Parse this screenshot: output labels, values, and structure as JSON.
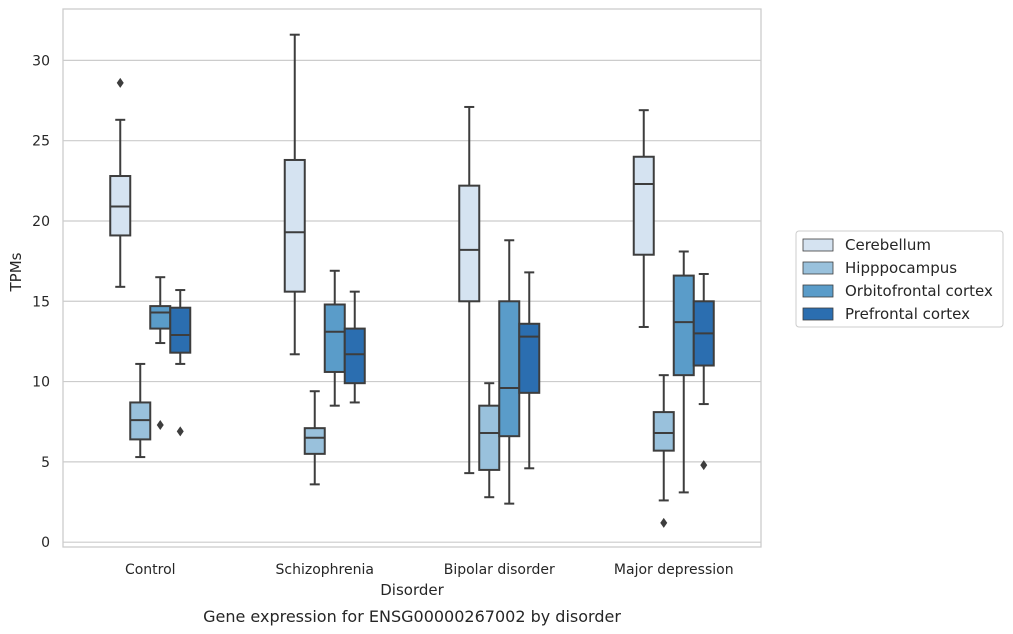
{
  "caption": "Gene expression for ENSG00000267002 by disorder",
  "chart_data": {
    "type": "box",
    "title": "",
    "xlabel": "Disorder",
    "ylabel": "TPMs",
    "ylim": [
      -0.3,
      33.2
    ],
    "yticks": [
      0,
      5,
      10,
      15,
      20,
      25,
      30
    ],
    "grid": "horizontal",
    "legend_position": "right-center",
    "categories": [
      "Control",
      "Schizophrenia",
      "Bipolar disorder",
      "Major depression"
    ],
    "series": [
      {
        "name": "Cerebellum",
        "color": "#d5e3f1",
        "boxes": [
          {
            "whisker_low": 15.9,
            "q1": 19.1,
            "median": 20.9,
            "q3": 22.8,
            "whisker_high": 26.3,
            "outliers": [
              28.6
            ]
          },
          {
            "whisker_low": 11.7,
            "q1": 15.6,
            "median": 19.3,
            "q3": 23.8,
            "whisker_high": 31.6,
            "outliers": []
          },
          {
            "whisker_low": 4.3,
            "q1": 15.0,
            "median": 18.2,
            "q3": 22.2,
            "whisker_high": 27.1,
            "outliers": []
          },
          {
            "whisker_low": 13.4,
            "q1": 17.9,
            "median": 22.3,
            "q3": 24.0,
            "whisker_high": 26.9,
            "outliers": []
          }
        ]
      },
      {
        "name": "Hipppocampus",
        "color": "#99c1dc",
        "boxes": [
          {
            "whisker_low": 5.3,
            "q1": 6.4,
            "median": 7.6,
            "q3": 8.7,
            "whisker_high": 11.1,
            "outliers": []
          },
          {
            "whisker_low": 3.6,
            "q1": 5.5,
            "median": 6.5,
            "q3": 7.1,
            "whisker_high": 9.4,
            "outliers": []
          },
          {
            "whisker_low": 2.8,
            "q1": 4.5,
            "median": 6.8,
            "q3": 8.5,
            "whisker_high": 9.9,
            "outliers": []
          },
          {
            "whisker_low": 2.6,
            "q1": 5.7,
            "median": 6.8,
            "q3": 8.1,
            "whisker_high": 10.4,
            "outliers": [
              1.2
            ]
          }
        ]
      },
      {
        "name": "Orbitofrontal cortex",
        "color": "#5a9cc9",
        "boxes": [
          {
            "whisker_low": 12.4,
            "q1": 13.3,
            "median": 14.3,
            "q3": 14.7,
            "whisker_high": 16.5,
            "outliers": [
              7.3
            ]
          },
          {
            "whisker_low": 8.5,
            "q1": 10.6,
            "median": 13.1,
            "q3": 14.8,
            "whisker_high": 16.9,
            "outliers": []
          },
          {
            "whisker_low": 2.4,
            "q1": 6.6,
            "median": 9.6,
            "q3": 15.0,
            "whisker_high": 18.8,
            "outliers": []
          },
          {
            "whisker_low": 3.1,
            "q1": 10.4,
            "median": 13.7,
            "q3": 16.6,
            "whisker_high": 18.1,
            "outliers": []
          }
        ]
      },
      {
        "name": "Prefrontal cortex",
        "color": "#2b6eb0",
        "boxes": [
          {
            "whisker_low": 11.1,
            "q1": 11.8,
            "median": 12.9,
            "q3": 14.6,
            "whisker_high": 15.7,
            "outliers": [
              6.9
            ]
          },
          {
            "whisker_low": 8.7,
            "q1": 9.9,
            "median": 11.7,
            "q3": 13.3,
            "whisker_high": 15.6,
            "outliers": []
          },
          {
            "whisker_low": 4.6,
            "q1": 9.3,
            "median": 12.8,
            "q3": 13.6,
            "whisker_high": 16.8,
            "outliers": []
          },
          {
            "whisker_low": 8.6,
            "q1": 11.0,
            "median": 13.0,
            "q3": 15.0,
            "whisker_high": 16.7,
            "outliers": [
              4.8
            ]
          }
        ]
      }
    ]
  }
}
